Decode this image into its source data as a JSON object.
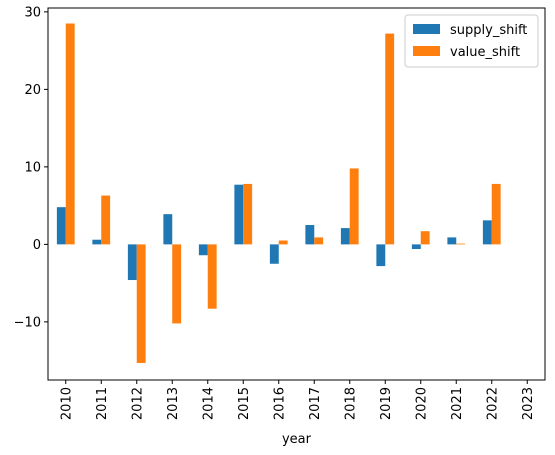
{
  "chart_data": {
    "type": "bar",
    "title": "",
    "xlabel": "year",
    "ylabel": "",
    "categories": [
      "2010",
      "2011",
      "2012",
      "2013",
      "2014",
      "2015",
      "2016",
      "2017",
      "2018",
      "2019",
      "2020",
      "2021",
      "2022",
      "2023"
    ],
    "series": [
      {
        "name": "supply_shift",
        "color": "#1f77b4",
        "values": [
          4.8,
          0.6,
          -4.6,
          3.9,
          -1.4,
          7.7,
          -2.5,
          2.5,
          2.1,
          -2.8,
          -0.6,
          0.9,
          3.1,
          0
        ]
      },
      {
        "name": "value_shift",
        "color": "#ff7f0e",
        "values": [
          28.5,
          6.3,
          -15.3,
          -10.2,
          -8.3,
          7.8,
          0.5,
          0.9,
          9.8,
          27.2,
          1.7,
          0.1,
          7.8,
          0
        ]
      }
    ],
    "ylim": [
      -17.5,
      30.5
    ],
    "yticks": [
      -10,
      0,
      10,
      20,
      30
    ],
    "ytick_labels": [
      "−10",
      "0",
      "10",
      "20",
      "30"
    ],
    "grid": false,
    "legend": "top-right"
  }
}
